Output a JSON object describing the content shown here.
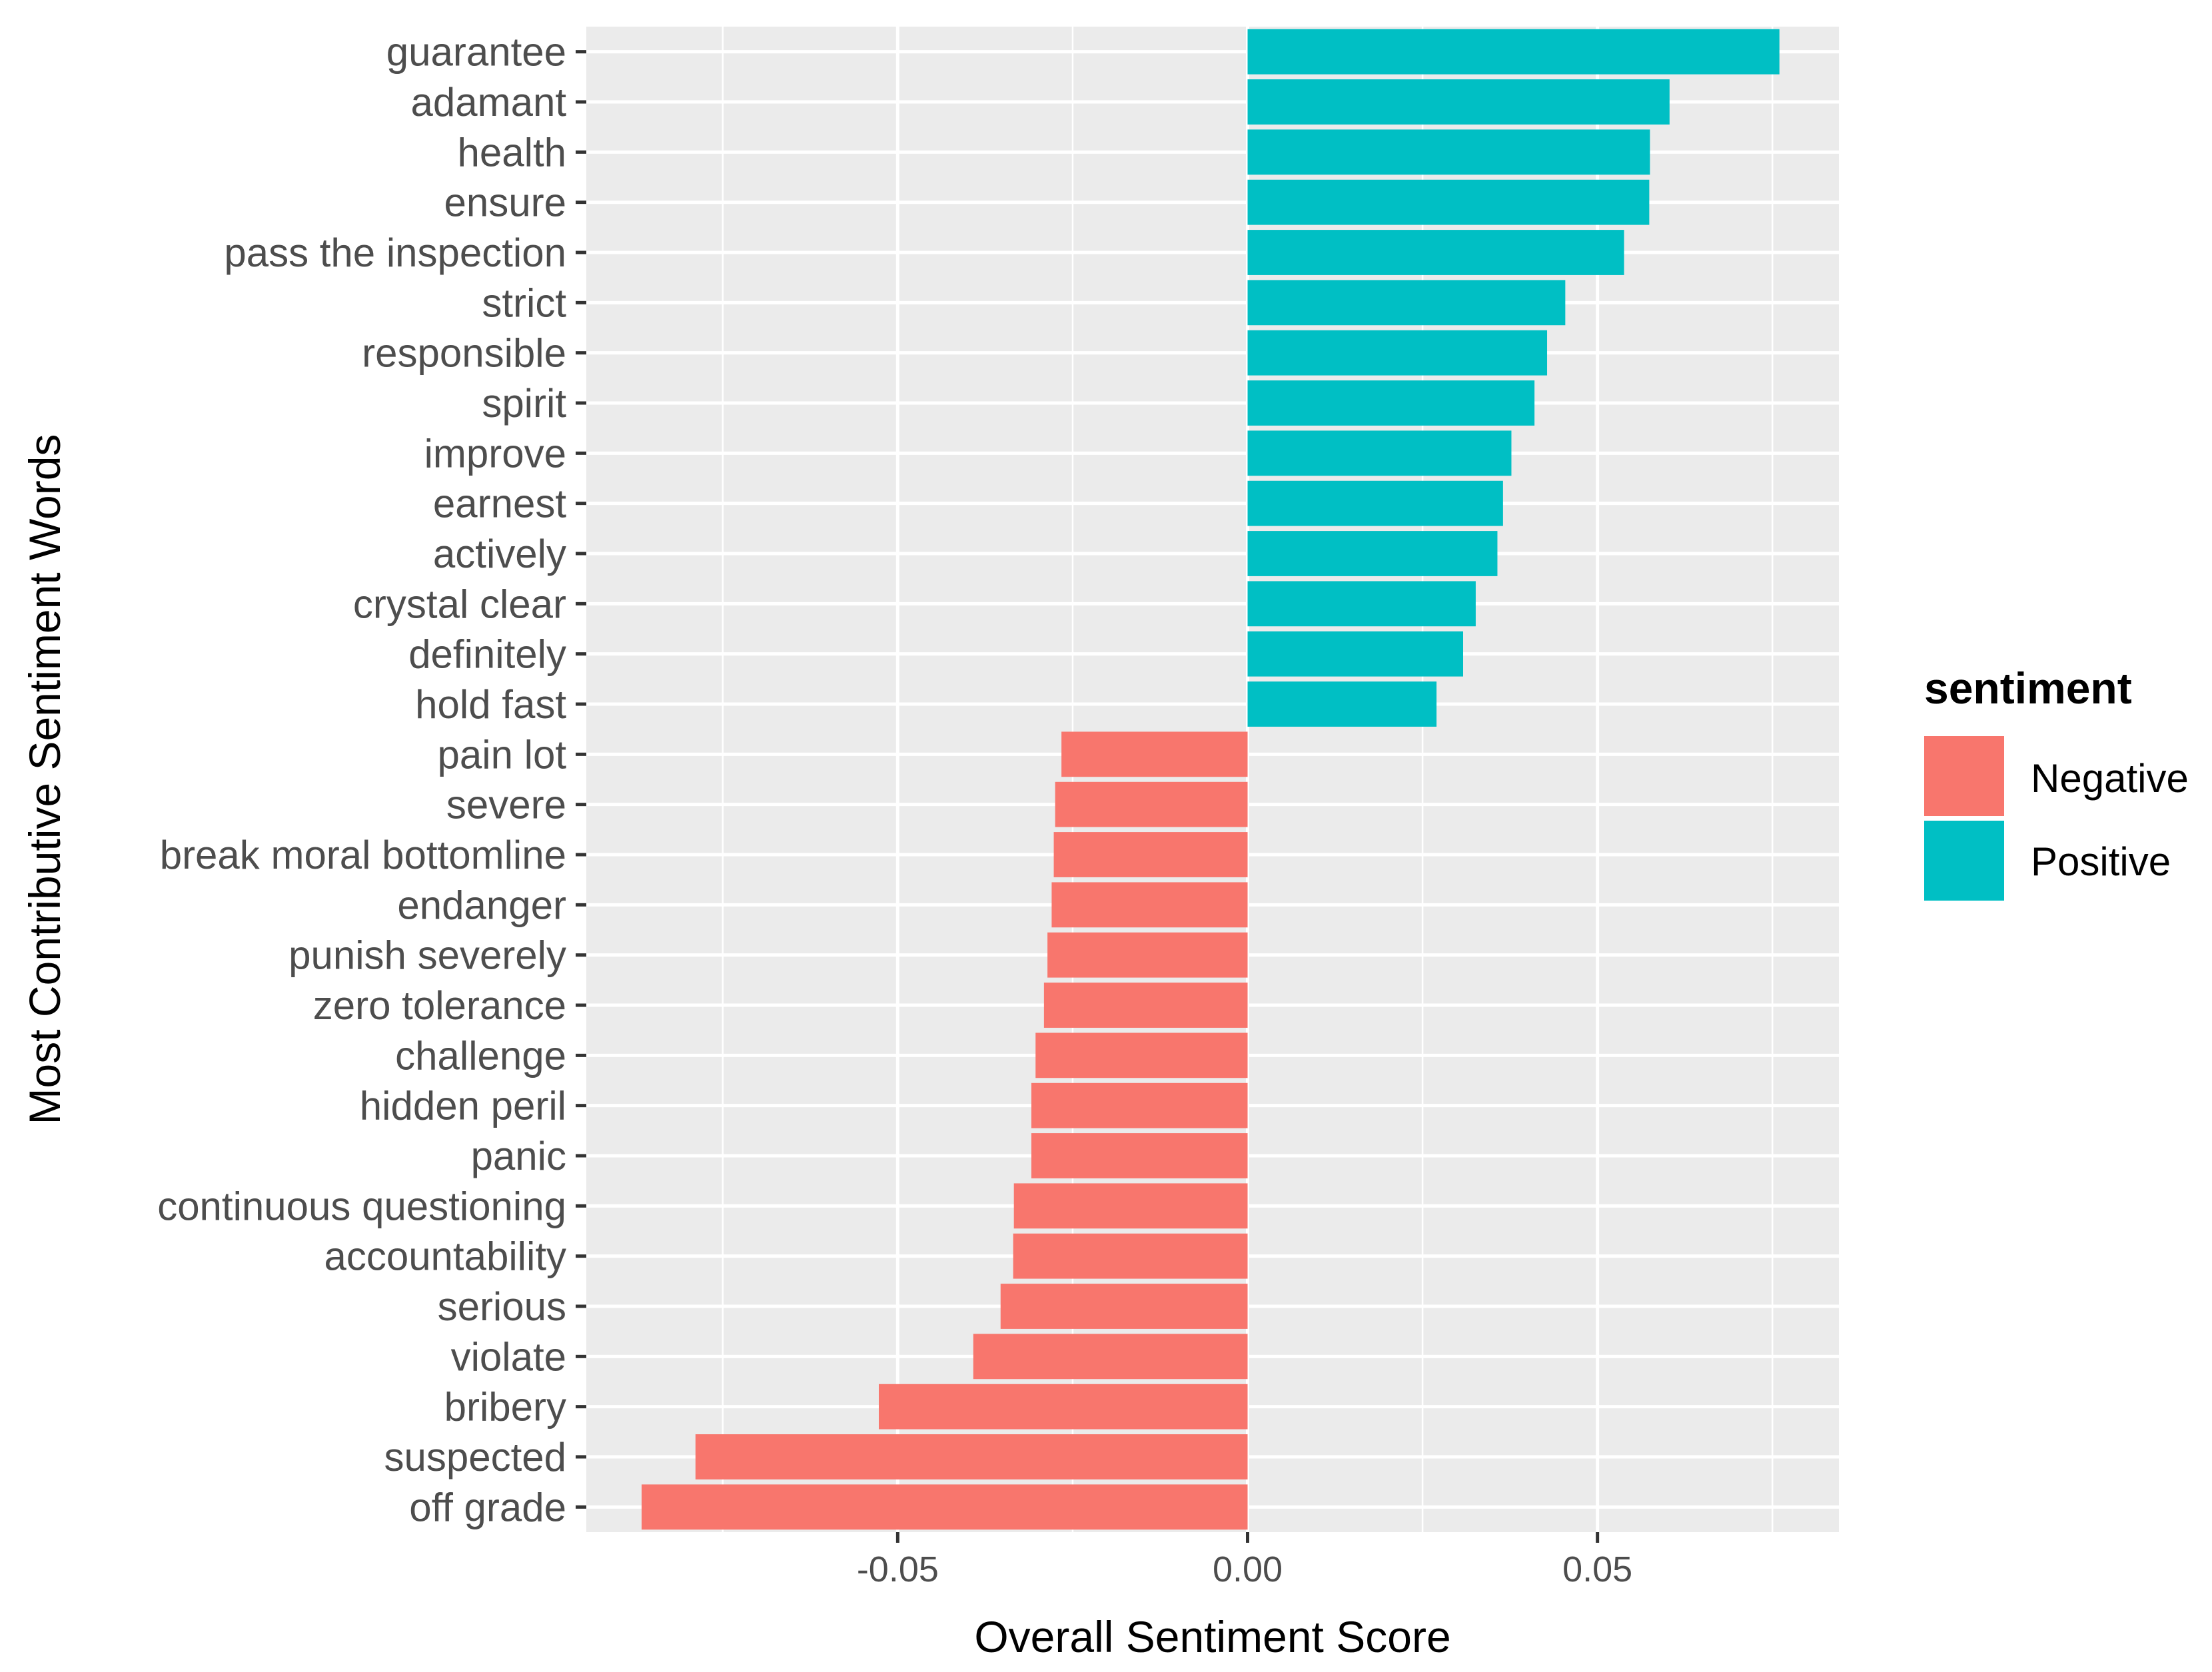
{
  "colors": {
    "Negative": "#F8766D",
    "Positive": "#00BFC4",
    "panel": "#EBEBEB",
    "grid": "#FFFFFF",
    "tick_text": "#4D4D4D",
    "tick_mark": "#333333"
  },
  "chart_data": {
    "type": "bar",
    "orientation": "horizontal",
    "xlabel": "Overall Sentiment Score",
    "ylabel": "Most Contributive Sentiment Words",
    "xlim": [
      -0.0945,
      0.0845
    ],
    "xticks": [
      -0.05,
      0.0,
      0.05
    ],
    "xtick_labels": [
      "-0.05",
      "0.00",
      "0.05"
    ],
    "grid": true,
    "legend": {
      "title": "sentiment",
      "position": "right",
      "entries": [
        "Negative",
        "Positive"
      ]
    },
    "categories": [
      "guarantee",
      "adamant",
      "health",
      "ensure",
      "pass the inspection",
      "strict",
      "responsible",
      "spirit",
      "improve",
      "earnest",
      "actively",
      "crystal clear",
      "definitely",
      "hold fast",
      "pain lot",
      "severe",
      "break moral bottomline",
      "endanger",
      "punish severely",
      "zero tolerance",
      "challenge",
      "hidden peril",
      "panic",
      "continuous questioning",
      "accountability",
      "serious",
      "violate",
      "bribery",
      "suspected",
      "off grade"
    ],
    "values": [
      0.076,
      0.0603,
      0.0575,
      0.0574,
      0.0538,
      0.0454,
      0.0428,
      0.041,
      0.0377,
      0.0365,
      0.0357,
      0.0326,
      0.0308,
      0.027,
      -0.0266,
      -0.0275,
      -0.0277,
      -0.028,
      -0.0286,
      -0.0291,
      -0.0303,
      -0.0309,
      -0.0309,
      -0.0334,
      -0.0335,
      -0.0353,
      -0.0392,
      -0.0527,
      -0.0789,
      -0.0866
    ],
    "sentiment": [
      "Positive",
      "Positive",
      "Positive",
      "Positive",
      "Positive",
      "Positive",
      "Positive",
      "Positive",
      "Positive",
      "Positive",
      "Positive",
      "Positive",
      "Positive",
      "Positive",
      "Negative",
      "Negative",
      "Negative",
      "Negative",
      "Negative",
      "Negative",
      "Negative",
      "Negative",
      "Negative",
      "Negative",
      "Negative",
      "Negative",
      "Negative",
      "Negative",
      "Negative",
      "Negative"
    ]
  }
}
